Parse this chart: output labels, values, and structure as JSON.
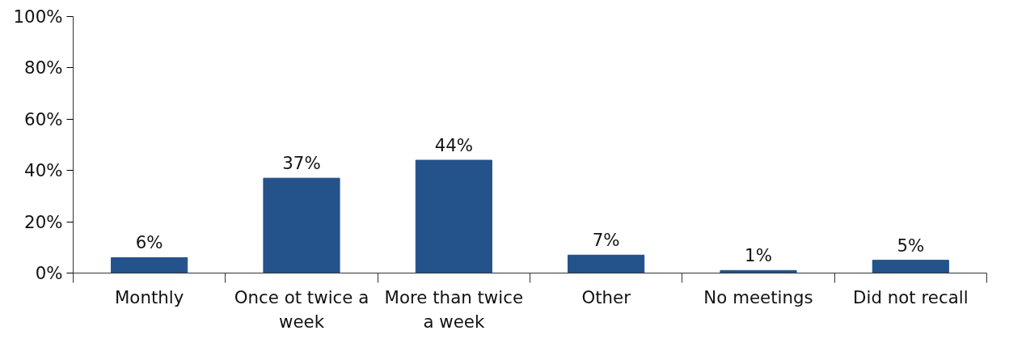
{
  "chart_data": {
    "type": "bar",
    "categories": [
      "Monthly",
      "Once ot twice a week",
      "More than twice a week",
      "Other",
      "No meetings",
      "Did not recall"
    ],
    "values": [
      6,
      37,
      44,
      7,
      1,
      5
    ],
    "value_labels": [
      "6%",
      "37%",
      "44%",
      "7%",
      "1%",
      "5%"
    ],
    "color": "#24528a",
    "ylim": [
      0,
      100
    ],
    "yticks": [
      {
        "value": 0,
        "label": "0%"
      },
      {
        "value": 20,
        "label": "20%"
      },
      {
        "value": 40,
        "label": "40%"
      },
      {
        "value": 60,
        "label": "60%"
      },
      {
        "value": 80,
        "label": "80%"
      },
      {
        "value": 100,
        "label": "100%"
      }
    ],
    "grid": false
  }
}
